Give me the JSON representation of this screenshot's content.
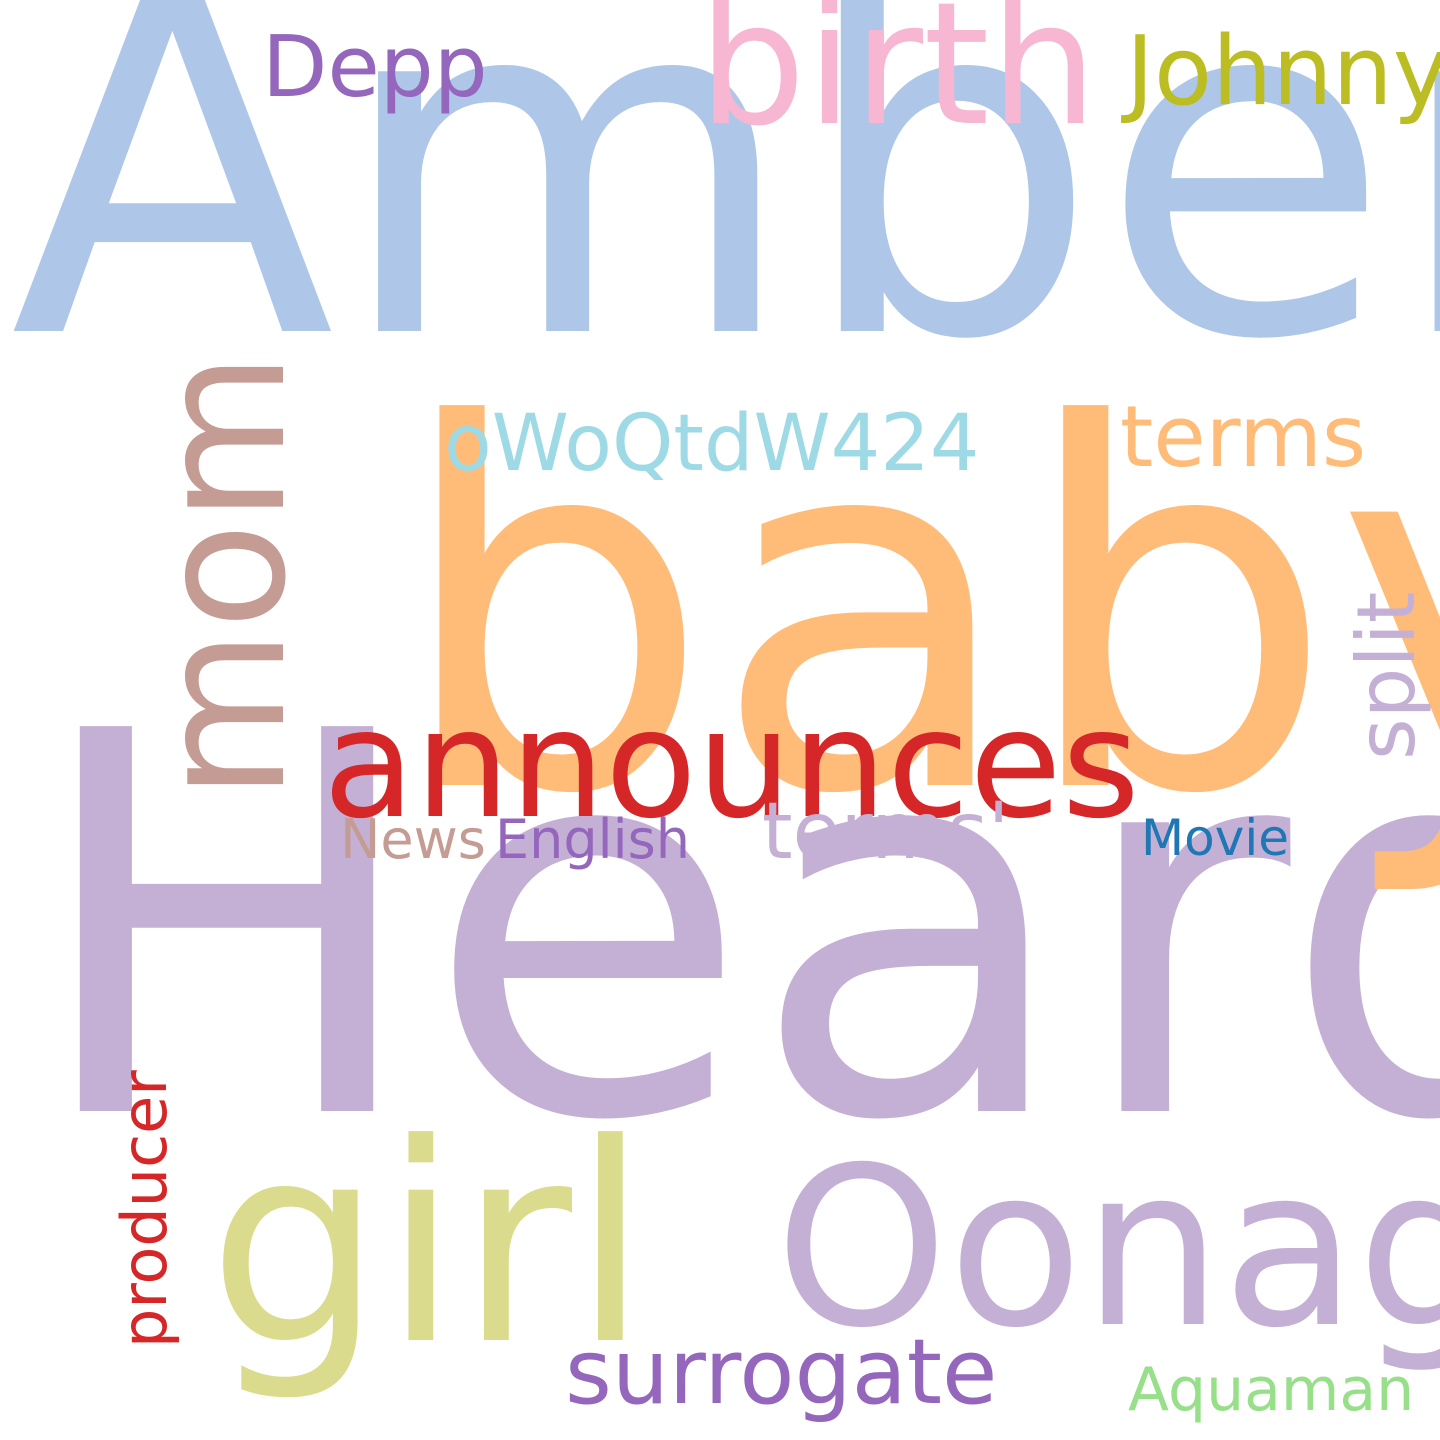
{
  "words": [
    {
      "id": "amber",
      "text": "Amber",
      "color": "#aec7e8"
    },
    {
      "id": "heard",
      "text": "Heard",
      "color": "#c5b0d5"
    },
    {
      "id": "baby",
      "text": "baby",
      "color": "#ffbb78"
    },
    {
      "id": "birth",
      "text": "birth",
      "color": "#f7b6d2"
    },
    {
      "id": "mom",
      "text": "mom",
      "color": "#c49c94",
      "orientation": "vertical"
    },
    {
      "id": "announces",
      "text": "announces",
      "color": "#d62728"
    },
    {
      "id": "girl",
      "text": "girl",
      "color": "#dbdb8d"
    },
    {
      "id": "oonagh",
      "text": "Oonagh",
      "color": "#c5b0d5"
    },
    {
      "id": "johnny",
      "text": "Johnny",
      "color": "#bcbd22"
    },
    {
      "id": "depp",
      "text": "Depp",
      "color": "#9467bd"
    },
    {
      "id": "owoqtdw424",
      "text": "oWoQtdW424",
      "color": "#9edae5"
    },
    {
      "id": "terms",
      "text": "terms",
      "color": "#ffbb78"
    },
    {
      "id": "split",
      "text": "split",
      "color": "#c5b0d5",
      "orientation": "vertical"
    },
    {
      "id": "terms-quote",
      "text": "terms'",
      "color": "#c5b0d5"
    },
    {
      "id": "news",
      "text": "News",
      "color": "#c49c94"
    },
    {
      "id": "english",
      "text": "English",
      "color": "#9467bd"
    },
    {
      "id": "movie",
      "text": "Movie",
      "color": "#1f77b4"
    },
    {
      "id": "producer",
      "text": "producer",
      "color": "#d62728",
      "orientation": "vertical"
    },
    {
      "id": "surrogate",
      "text": "surrogate",
      "color": "#9467bd"
    },
    {
      "id": "aquaman",
      "text": "Aquaman",
      "color": "#98df8a"
    }
  ]
}
